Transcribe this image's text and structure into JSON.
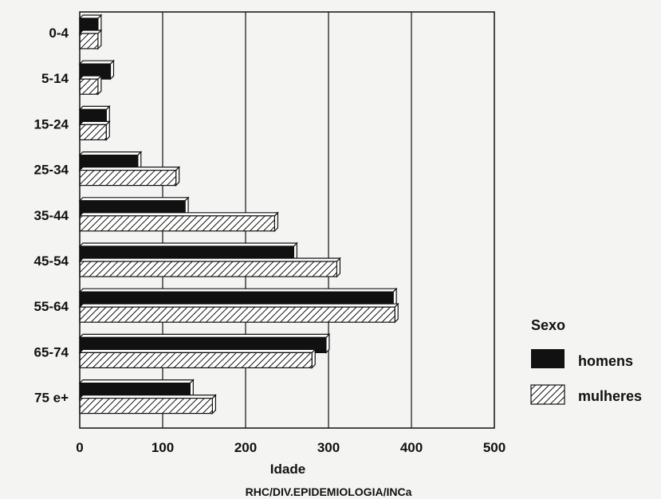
{
  "chart_data": {
    "type": "bar",
    "orientation": "horizontal",
    "categories": [
      "0-4",
      "5-14",
      "15-24",
      "25-34",
      "35-44",
      "45-54",
      "55-64",
      "65-74",
      "75 e+"
    ],
    "series": [
      {
        "name": "homens",
        "values": [
          22,
          37,
          32,
          70,
          127,
          258,
          378,
          297,
          133
        ],
        "fill": "solid",
        "color": "#111111"
      },
      {
        "name": "mulheres",
        "values": [
          22,
          22,
          32,
          116,
          235,
          310,
          380,
          280,
          160
        ],
        "fill": "hatched",
        "color": "#111111"
      }
    ],
    "xlabel": "Idade",
    "xlim": [
      0,
      500
    ],
    "xticks": [
      0,
      100,
      200,
      300,
      400,
      500
    ],
    "grid": "vertical",
    "legend": {
      "title": "Sexo",
      "position": "right"
    },
    "source": "RHC/DIV.EPIDEMIOLOGIA/INCa"
  }
}
